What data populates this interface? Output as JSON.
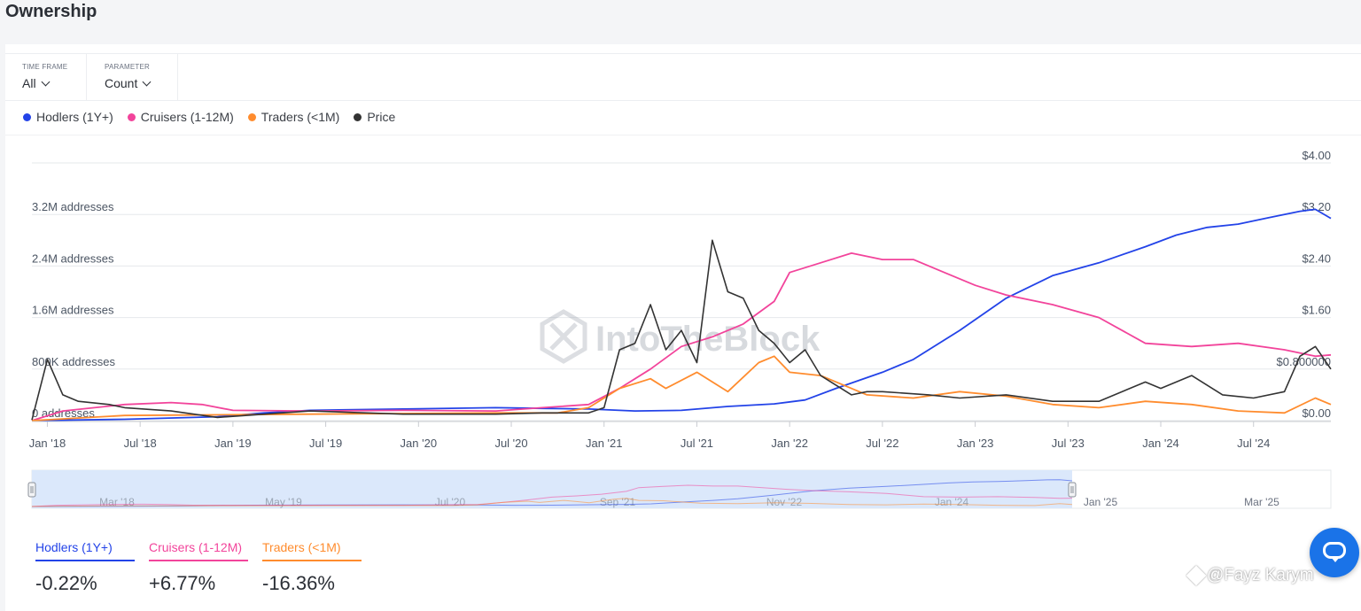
{
  "page": {
    "title": "Ownership"
  },
  "controls": {
    "timeframe": {
      "label": "TIME FRAME",
      "value": "All"
    },
    "parameter": {
      "label": "PARAMETER",
      "value": "Count"
    }
  },
  "watermark": "IntoTheBlock",
  "attribution": "@Fayz Karym",
  "colors": {
    "hodlers": "#2343e8",
    "cruisers": "#f2449b",
    "traders": "#ff8c2e",
    "price": "#333333",
    "navigator_fill": "#dbe8fb"
  },
  "stats": [
    {
      "name": "Hodlers (1Y+)",
      "value": "-0.22%",
      "color": "#2343e8"
    },
    {
      "name": "Cruisers (1-12M)",
      "value": "+6.77%",
      "color": "#f2449b"
    },
    {
      "name": "Traders (<1M)",
      "value": "-16.36%",
      "color": "#ff8c2e"
    }
  ],
  "chart_data": {
    "type": "line",
    "legend": [
      "Hodlers (1Y+)",
      "Cruisers (1-12M)",
      "Traders (<1M)",
      "Price"
    ],
    "x_tick_labels": [
      "Jan '18",
      "Jul '18",
      "Jan '19",
      "Jul '19",
      "Jan '20",
      "Jul '20",
      "Jan '21",
      "Jul '21",
      "Jan '22",
      "Jul '22",
      "Jan '23",
      "Jul '23",
      "Jan '24",
      "Jul '24"
    ],
    "x_range": [
      "2017-12",
      "2024-12"
    ],
    "y_left": {
      "label_suffix": " addresses",
      "ticks": [
        "0 addresses",
        "800K addresses",
        "1.6M addresses",
        "2.4M addresses",
        "3.2M addresses"
      ],
      "range": [
        0,
        4000000
      ]
    },
    "y_right": {
      "ticks": [
        "$0.00",
        "$0.800000",
        "$1.60",
        "$2.40",
        "$3.20",
        "$4.00"
      ],
      "range": [
        0,
        4.0
      ]
    },
    "navigator_labels": [
      "Mar '18",
      "May '19",
      "Jul '20",
      "Sep '21",
      "Nov '22",
      "Jan '24",
      "Jan '25",
      "Mar '25"
    ],
    "series": [
      {
        "name": "Hodlers (1Y+)",
        "axis": "left",
        "x": [
          "2017-12",
          "2018-06",
          "2018-12",
          "2019-03",
          "2019-06",
          "2019-12",
          "2020-06",
          "2020-09",
          "2020-12",
          "2021-03",
          "2021-06",
          "2021-09",
          "2021-12",
          "2022-02",
          "2022-04",
          "2022-07",
          "2022-09",
          "2022-12",
          "2023-03",
          "2023-06",
          "2023-09",
          "2023-12",
          "2024-02",
          "2024-04",
          "2024-06",
          "2024-08",
          "2024-10",
          "2024-11",
          "2024-12"
        ],
        "y": [
          0,
          20000,
          60000,
          120000,
          160000,
          180000,
          200000,
          190000,
          180000,
          150000,
          160000,
          220000,
          260000,
          320000,
          500000,
          750000,
          950000,
          1400000,
          1900000,
          2250000,
          2450000,
          2700000,
          2880000,
          3000000,
          3050000,
          3150000,
          3250000,
          3280000,
          3140000
        ]
      },
      {
        "name": "Cruisers (1-12M)",
        "axis": "left",
        "x": [
          "2017-12",
          "2018-02",
          "2018-06",
          "2018-09",
          "2018-11",
          "2019-01",
          "2019-06",
          "2019-12",
          "2020-06",
          "2020-09",
          "2020-12",
          "2021-02",
          "2021-04",
          "2021-06",
          "2021-08",
          "2021-10",
          "2021-12",
          "2022-01",
          "2022-03",
          "2022-05",
          "2022-07",
          "2022-09",
          "2022-11",
          "2023-01",
          "2023-03",
          "2023-06",
          "2023-09",
          "2023-12",
          "2024-03",
          "2024-06",
          "2024-09",
          "2024-11",
          "2024-12"
        ],
        "y": [
          0,
          150000,
          250000,
          280000,
          250000,
          160000,
          150000,
          160000,
          150000,
          200000,
          250000,
          500000,
          800000,
          1150000,
          1300000,
          1500000,
          1850000,
          2300000,
          2450000,
          2600000,
          2500000,
          2500000,
          2300000,
          2100000,
          1950000,
          1800000,
          1600000,
          1200000,
          1150000,
          1200000,
          1100000,
          1000000,
          1020000
        ]
      },
      {
        "name": "Traders (<1M)",
        "axis": "left",
        "x": [
          "2017-12",
          "2018-06",
          "2019-06",
          "2020-06",
          "2020-10",
          "2020-12",
          "2021-02",
          "2021-04",
          "2021-05",
          "2021-07",
          "2021-09",
          "2021-11",
          "2021-12",
          "2022-01",
          "2022-03",
          "2022-06",
          "2022-09",
          "2022-12",
          "2023-03",
          "2023-06",
          "2023-09",
          "2023-12",
          "2024-03",
          "2024-06",
          "2024-09",
          "2024-11",
          "2024-12"
        ],
        "y": [
          0,
          80000,
          100000,
          120000,
          120000,
          200000,
          500000,
          650000,
          500000,
          750000,
          450000,
          900000,
          1000000,
          750000,
          700000,
          400000,
          350000,
          450000,
          380000,
          250000,
          200000,
          300000,
          250000,
          150000,
          120000,
          350000,
          250000
        ]
      },
      {
        "name": "Price",
        "axis": "right",
        "x": [
          "2017-12",
          "2018-01",
          "2018-02",
          "2018-03",
          "2018-05",
          "2018-06",
          "2018-09",
          "2018-12",
          "2019-06",
          "2019-12",
          "2020-06",
          "2020-09",
          "2020-12",
          "2021-01",
          "2021-02",
          "2021-03",
          "2021-04",
          "2021-05",
          "2021-06",
          "2021-07",
          "2021-08",
          "2021-09",
          "2021-10",
          "2021-11",
          "2021-12",
          "2022-01",
          "2022-02",
          "2022-03",
          "2022-05",
          "2022-06",
          "2022-07",
          "2022-10",
          "2022-12",
          "2023-03",
          "2023-06",
          "2023-09",
          "2023-12",
          "2024-01",
          "2024-03",
          "2024-05",
          "2024-07",
          "2024-09",
          "2024-10",
          "2024-11",
          "2024-12"
        ],
        "y": [
          0.01,
          0.95,
          0.4,
          0.3,
          0.25,
          0.2,
          0.15,
          0.05,
          0.15,
          0.1,
          0.1,
          0.12,
          0.12,
          0.2,
          1.1,
          1.2,
          1.8,
          1.1,
          1.4,
          0.9,
          2.8,
          2.0,
          1.9,
          1.4,
          1.2,
          0.9,
          1.1,
          0.7,
          0.4,
          0.45,
          0.45,
          0.4,
          0.35,
          0.4,
          0.3,
          0.3,
          0.6,
          0.5,
          0.7,
          0.4,
          0.35,
          0.45,
          1.0,
          1.15,
          0.8
        ]
      }
    ]
  }
}
